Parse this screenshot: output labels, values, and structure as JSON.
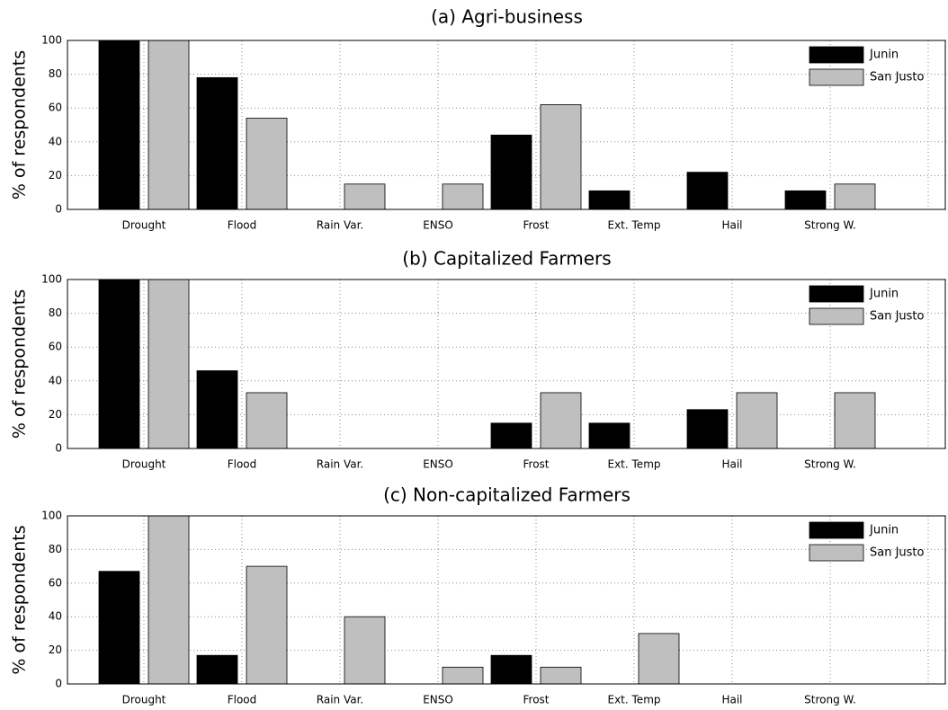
{
  "chart_data": [
    {
      "type": "bar",
      "title": "(a) Agri-business",
      "y_label": "% of respondents",
      "categories": [
        "Drought",
        "Flood",
        "Rain Var.",
        "ENSO",
        "Frost",
        "Ext. Temp",
        "Hail",
        "Strong W."
      ],
      "series": [
        {
          "name": "Junin",
          "color": "#000000",
          "values": [
            100,
            78,
            0,
            0,
            44,
            11,
            22,
            11
          ]
        },
        {
          "name": "San Justo",
          "color": "#bfbfbf",
          "values": [
            100,
            54,
            15,
            15,
            62,
            0,
            0,
            15
          ]
        }
      ],
      "ylim": [
        0,
        100
      ],
      "yticks": [
        0,
        20,
        40,
        60,
        80,
        100
      ],
      "grid": true,
      "legend": "upper right"
    },
    {
      "type": "bar",
      "title": "(b) Capitalized Farmers",
      "y_label": "% of respondents",
      "categories": [
        "Drought",
        "Flood",
        "Rain Var.",
        "ENSO",
        "Frost",
        "Ext. Temp",
        "Hail",
        "Strong W."
      ],
      "series": [
        {
          "name": "Junin",
          "color": "#000000",
          "values": [
            100,
            46,
            0,
            0,
            15,
            15,
            23,
            0
          ]
        },
        {
          "name": "San Justo",
          "color": "#bfbfbf",
          "values": [
            100,
            33,
            0,
            0,
            33,
            0,
            33,
            33
          ]
        }
      ],
      "ylim": [
        0,
        100
      ],
      "yticks": [
        0,
        20,
        40,
        60,
        80,
        100
      ],
      "grid": true,
      "legend": "upper right"
    },
    {
      "type": "bar",
      "title": "(c) Non-capitalized Farmers",
      "y_label": "% of respondents",
      "categories": [
        "Drought",
        "Flood",
        "Rain Var.",
        "ENSO",
        "Frost",
        "Ext. Temp",
        "Hail",
        "Strong W."
      ],
      "series": [
        {
          "name": "Junin",
          "color": "#000000",
          "values": [
            67,
            17,
            0,
            0,
            17,
            0,
            0,
            0
          ]
        },
        {
          "name": "San Justo",
          "color": "#bfbfbf",
          "values": [
            100,
            70,
            40,
            10,
            10,
            30,
            0,
            0
          ]
        }
      ],
      "ylim": [
        0,
        100
      ],
      "yticks": [
        0,
        20,
        40,
        60,
        80,
        100
      ],
      "grid": true,
      "legend": "upper right"
    }
  ]
}
